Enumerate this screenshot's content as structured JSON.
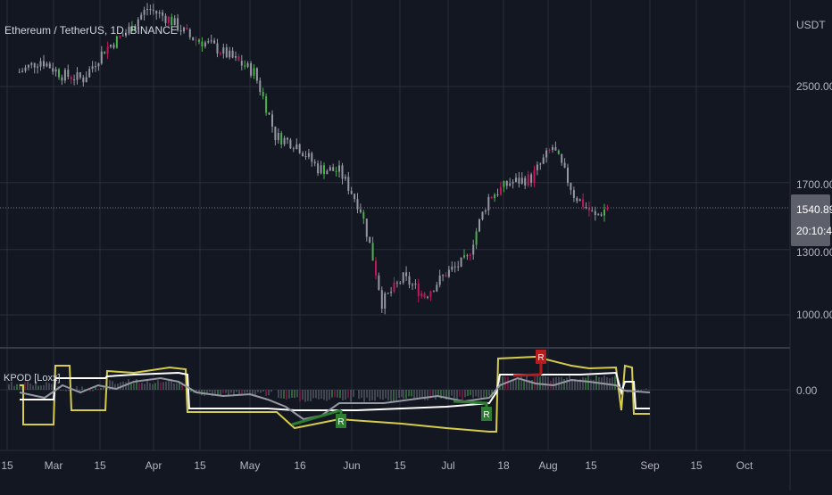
{
  "chart_title": "Ethereum / TetherUS, 1D, BINANCE",
  "indicator_label": "KPOD [Loxx]",
  "currency_label": "USDT",
  "colors": {
    "background": "#131722",
    "grid": "#2a2e39",
    "candle": "#9598a1",
    "up": "#4caf50",
    "down": "#c2185b",
    "signal_green": "#2e7d32",
    "signal_red": "#b71c1c",
    "yellow_band": "#d4cc4a",
    "white_line": "#ffffff",
    "gray_line": "#9598a1",
    "price_line": "#787b86"
  },
  "price_axis": {
    "ticks": [
      "2500.00",
      "1700.00",
      "1300.00",
      "1000.00"
    ],
    "last_price": "1540.89",
    "countdown": "20:10:41"
  },
  "indicator_axis": {
    "ticks": [
      "0.00"
    ]
  },
  "time_axis": {
    "ticks": [
      "15",
      "Mar",
      "15",
      "Apr",
      "15",
      "May",
      "16",
      "Jun",
      "15",
      "Jul",
      "18",
      "Aug",
      "15",
      "Sep",
      "15",
      "Oct"
    ]
  },
  "chart_data": {
    "type": "candlestick",
    "title": "Ethereum / TetherUS, 1D, BINANCE",
    "y_scale": "log",
    "y_ticks": [
      2500,
      1700,
      1300,
      1000
    ],
    "last_price": 1540.89,
    "x_range": [
      "2022-02-15",
      "2022-10-15"
    ],
    "weekly_close": [
      {
        "date": "2022-02-19",
        "close": 2650
      },
      {
        "date": "2022-02-26",
        "close": 2780
      },
      {
        "date": "2022-03-05",
        "close": 2620
      },
      {
        "date": "2022-03-12",
        "close": 2580
      },
      {
        "date": "2022-03-19",
        "close": 2900
      },
      {
        "date": "2022-03-26",
        "close": 3100
      },
      {
        "date": "2022-04-02",
        "close": 3420
      },
      {
        "date": "2022-04-09",
        "close": 3280
      },
      {
        "date": "2022-04-16",
        "close": 3050
      },
      {
        "date": "2022-04-23",
        "close": 2950
      },
      {
        "date": "2022-04-30",
        "close": 2800
      },
      {
        "date": "2022-05-07",
        "close": 2650
      },
      {
        "date": "2022-05-14",
        "close": 2050
      },
      {
        "date": "2022-05-21",
        "close": 1980
      },
      {
        "date": "2022-05-28",
        "close": 1800
      },
      {
        "date": "2022-06-04",
        "close": 1780
      },
      {
        "date": "2022-06-11",
        "close": 1530
      },
      {
        "date": "2022-06-18",
        "close": 1050
      },
      {
        "date": "2022-06-25",
        "close": 1160
      },
      {
        "date": "2022-07-02",
        "close": 1080
      },
      {
        "date": "2022-07-09",
        "close": 1180
      },
      {
        "date": "2022-07-16",
        "close": 1250
      },
      {
        "date": "2022-07-23",
        "close": 1600
      },
      {
        "date": "2022-07-30",
        "close": 1700
      },
      {
        "date": "2022-08-06",
        "close": 1730
      },
      {
        "date": "2022-08-13",
        "close": 1960
      },
      {
        "date": "2022-08-20",
        "close": 1620
      },
      {
        "date": "2022-08-27",
        "close": 1480
      },
      {
        "date": "2022-08-31",
        "close": 1540.89
      }
    ],
    "indicator": {
      "name": "KPOD [Loxx]",
      "zero_line": 0,
      "signals": [
        {
          "label": "R",
          "type": "bullish",
          "date": "2022-06-01"
        },
        {
          "label": "R",
          "type": "bullish",
          "date": "2022-07-25"
        },
        {
          "label": "R",
          "type": "bearish",
          "date": "2022-08-04"
        }
      ]
    }
  }
}
